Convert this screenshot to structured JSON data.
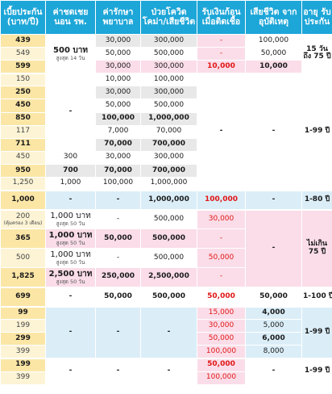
{
  "header": {
    "premium": "เบี้ยประกัน (บาท/ปี)",
    "hosp": "ค่าชดเชย นอน รพ.",
    "medical": "ค่ารักษา พยาบาล",
    "covid": "ป่วยโควิด โคม่า/เสียชีวิต",
    "infect": "รับเงินก้อน เมื่อติดเชื้อ",
    "accident": "เสียชีวิต จากอุบัติเหตุ",
    "age": "อายุ รับประกัน"
  },
  "dash": "-",
  "rows": {
    "r1": {
      "premium": "439",
      "medical": "30,000",
      "covid": "300,000",
      "accident": "100,000"
    },
    "r2": {
      "premium": "549",
      "medical": "50,000",
      "covid": "500,000",
      "accident": "50,000"
    },
    "r3": {
      "premium": "599",
      "medical": "30,000",
      "covid": "300,000",
      "infect": "10,000",
      "accident": "10,000"
    },
    "g1": {
      "hosp": "500 บาท",
      "hosp_note": "สูงสุด 14 วัน",
      "age": "15 วัน ถึง 75 ปี"
    },
    "r4": {
      "premium": "150",
      "medical": "10,000",
      "covid": "100,000"
    },
    "r5": {
      "premium": "250",
      "medical": "30,000",
      "covid": "300,000"
    },
    "r6": {
      "premium": "450",
      "medical": "50,000",
      "covid": "500,000"
    },
    "r7": {
      "premium": "850",
      "medical": "100,000",
      "covid": "1,000,000"
    },
    "r8": {
      "premium": "117",
      "medical": "7,000",
      "covid": "70,000"
    },
    "r9": {
      "premium": "711",
      "medical": "70,000",
      "covid": "700,000"
    },
    "r10": {
      "premium": "450",
      "hosp": "300",
      "medical": "30,000",
      "covid": "300,000"
    },
    "r11": {
      "premium": "950",
      "hosp": "700",
      "medical": "70,000",
      "covid": "700,000"
    },
    "r12": {
      "premium": "1,250",
      "hosp": "1,000",
      "medical": "100,000",
      "covid": "1,000,000"
    },
    "g2": {
      "age": "1-99 ปี"
    },
    "r13": {
      "premium": "1,000",
      "covid": "1,000,000",
      "infect": "100,000",
      "age": "1-80 ปี"
    },
    "r14": {
      "premium": "200",
      "premium_note": "(คุ้มครอง 3 เดือน)",
      "hosp": "1,000 บาท",
      "hosp_note": "สูงสุด 50 วัน",
      "covid": "500,000",
      "infect": "30,000"
    },
    "r15": {
      "premium": "365",
      "hosp": "1,000 บาท",
      "hosp_note": "สูงสุด 50 วัน",
      "medical": "50,000",
      "covid": "500,000"
    },
    "r16": {
      "premium": "500",
      "hosp": "1,000 บาท",
      "hosp_note": "สูงสุด 50 วัน",
      "covid": "500,000",
      "infect": "50,000"
    },
    "r17": {
      "premium": "1,825",
      "hosp": "2,500 บาท",
      "hosp_note": "สูงสุด 50 วัน",
      "medical": "250,000",
      "covid": "2,500,000"
    },
    "g3": {
      "age": "ไม่เกิน 75 ปี"
    },
    "r18": {
      "premium": "699",
      "medical": "50,000",
      "covid": "500,000",
      "infect": "50,000",
      "accident": "50,000",
      "age": "1-100 ปี"
    },
    "r19": {
      "premium": "99",
      "infect": "15,000",
      "accident": "4,000"
    },
    "r20": {
      "premium": "199",
      "infect": "30,000",
      "accident": "5,000"
    },
    "r21": {
      "premium": "299",
      "infect": "50,000",
      "accident": "6,000"
    },
    "r22": {
      "premium": "399",
      "infect": "100,000",
      "accident": "8,000"
    },
    "g4": {
      "age": "1-99 ปี"
    },
    "r23": {
      "premium": "199",
      "infect": "50,000"
    },
    "r24": {
      "premium": "399",
      "infect": "100,000"
    },
    "g5": {
      "age": "1-99 ปี"
    }
  },
  "colors": {
    "header": "#1da6d8",
    "premium": "#fbe6a6",
    "blue_cell": "#dbeef8",
    "pink_cell": "#fadde8",
    "red_text": "#e11515"
  }
}
